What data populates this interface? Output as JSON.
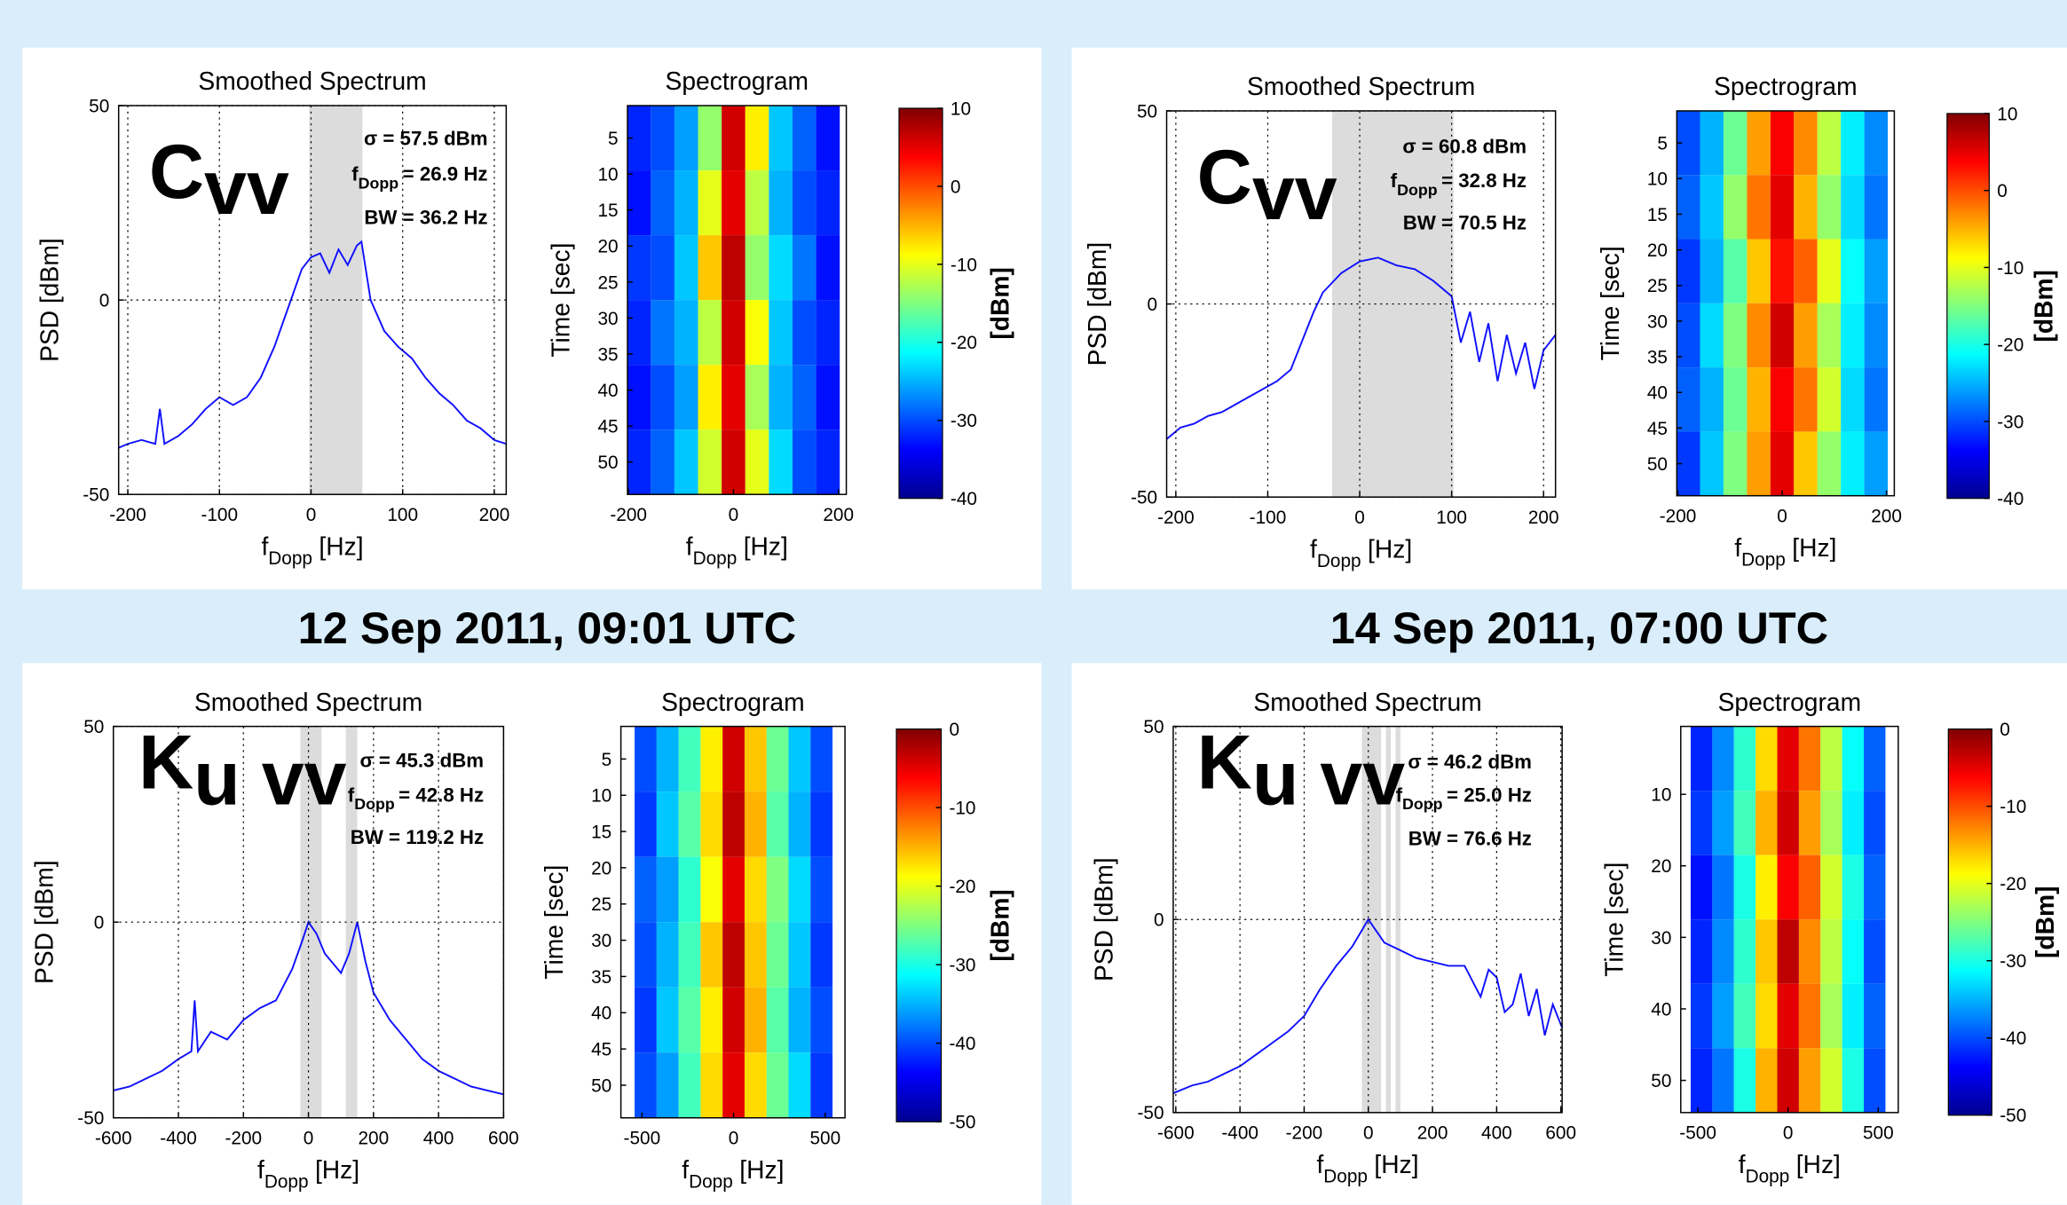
{
  "captions": [
    "12 Sep 2011, 09:01 UTC",
    "14 Sep 2011, 07:00 UTC"
  ],
  "chart_data": [
    {
      "type": "line",
      "title": "Smoothed Spectrum",
      "band": {
        "main": "C",
        "sub": "vv"
      },
      "annotations": [
        {
          "text": "σ = 57.5 dBm"
        },
        {
          "main": "f",
          "sub": "Dopp",
          "text": "= 26.9 Hz"
        },
        {
          "text": "BW = 36.2 Hz"
        }
      ],
      "x": [
        -210,
        -200,
        -185,
        -170,
        -165,
        -160,
        -145,
        -130,
        -115,
        -100,
        -85,
        -70,
        -55,
        -40,
        -25,
        -10,
        0,
        10,
        20,
        30,
        40,
        50,
        55,
        65,
        80,
        95,
        110,
        125,
        140,
        155,
        170,
        185,
        200,
        213
      ],
      "values": [
        -38,
        -37,
        -36,
        -37,
        -28,
        -37,
        -35,
        -32,
        -28,
        -25,
        -27,
        -25,
        -20,
        -12,
        -2,
        8,
        11,
        12,
        7,
        13,
        9,
        14,
        15,
        0,
        -8,
        -12,
        -15,
        -20,
        -24,
        -27,
        -31,
        -33,
        -36,
        -37
      ],
      "color": "#1010ff",
      "shaded": [
        [
          -2,
          56
        ]
      ],
      "xlim": [
        -210,
        213
      ],
      "ylim": [
        -50,
        50
      ],
      "xticks": [
        -200,
        -100,
        0,
        100,
        200
      ],
      "yticks": [
        -50,
        0,
        50
      ],
      "grid": true,
      "xlabel": {
        "main": "f",
        "sub": "Dopp",
        "unit": "[Hz]"
      },
      "ylabel": "PSD [dBm]"
    },
    {
      "type": "heatmap",
      "title": "Spectrogram",
      "yreverse": true,
      "x": [
        -180,
        -135,
        -90,
        -45,
        0,
        45,
        90,
        135,
        180
      ],
      "y": [
        5,
        14,
        23,
        32,
        41,
        50
      ],
      "z": [
        [
          -32,
          -30,
          -26,
          -14,
          6,
          -8,
          -24,
          -29,
          -33
        ],
        [
          -33,
          -29,
          -25,
          -10,
          5,
          -12,
          -25,
          -30,
          -32
        ],
        [
          -31,
          -30,
          -24,
          -6,
          7,
          -14,
          -23,
          -28,
          -33
        ],
        [
          -32,
          -28,
          -25,
          -12,
          6,
          -9,
          -24,
          -30,
          -32
        ],
        [
          -33,
          -30,
          -26,
          -8,
          5,
          -13,
          -25,
          -29,
          -33
        ],
        [
          -32,
          -29,
          -24,
          -11,
          6,
          -10,
          -23,
          -30,
          -32
        ]
      ],
      "xlim": [
        -202,
        215
      ],
      "ylim": [
        0.5,
        54.5
      ],
      "xticks": [
        -200,
        0,
        200
      ],
      "yticks": [
        5,
        10,
        15,
        20,
        25,
        30,
        35,
        40,
        45,
        50
      ],
      "xlabel": {
        "main": "f",
        "sub": "Dopp",
        "unit": "[Hz]"
      },
      "ylabel": "Time [sec]",
      "colorbar": {
        "label": "[dBm]",
        "lim": [
          -40,
          10
        ],
        "ticks": [
          10,
          0,
          -10,
          -20,
          -30,
          -40
        ]
      }
    },
    {
      "type": "line",
      "title": "Smoothed Spectrum",
      "band": {
        "main": "C",
        "sub": "vv"
      },
      "annotations": [
        {
          "text": "σ = 60.8 dBm"
        },
        {
          "main": "f",
          "sub": "Dopp",
          "text": "= 32.8 Hz"
        },
        {
          "text": "BW = 70.5 Hz"
        }
      ],
      "x": [
        -210,
        -195,
        -180,
        -165,
        -150,
        -135,
        -120,
        -105,
        -90,
        -75,
        -60,
        -50,
        -40,
        -20,
        0,
        20,
        40,
        60,
        80,
        100,
        110,
        120,
        130,
        140,
        150,
        160,
        170,
        180,
        190,
        200,
        213
      ],
      "values": [
        -35,
        -32,
        -31,
        -29,
        -28,
        -26,
        -24,
        -22,
        -20,
        -17,
        -8,
        -2,
        3,
        8,
        11,
        12,
        10,
        9,
        6,
        2,
        -10,
        -2,
        -15,
        -5,
        -20,
        -8,
        -18,
        -10,
        -22,
        -12,
        -8
      ],
      "color": "#1010ff",
      "shaded": [
        [
          -30,
          102
        ]
      ],
      "xlim": [
        -210,
        213
      ],
      "ylim": [
        -50,
        50
      ],
      "xticks": [
        -200,
        -100,
        0,
        100,
        200
      ],
      "yticks": [
        -50,
        0,
        50
      ],
      "grid": true,
      "xlabel": {
        "main": "f",
        "sub": "Dopp",
        "unit": "[Hz]"
      },
      "ylabel": "PSD [dBm]"
    },
    {
      "type": "heatmap",
      "title": "Spectrogram",
      "yreverse": true,
      "x": [
        -180,
        -135,
        -90,
        -45,
        0,
        45,
        90,
        135,
        180
      ],
      "y": [
        5,
        14,
        23,
        32,
        41,
        50
      ],
      "z": [
        [
          -30,
          -25,
          -16,
          -4,
          4,
          -3,
          -12,
          -22,
          -27
        ],
        [
          -29,
          -24,
          -14,
          -2,
          5,
          -5,
          -14,
          -23,
          -28
        ],
        [
          -31,
          -25,
          -17,
          -6,
          3,
          -1,
          -10,
          -21,
          -26
        ],
        [
          -30,
          -23,
          -15,
          -3,
          6,
          -4,
          -13,
          -22,
          -27
        ],
        [
          -29,
          -25,
          -16,
          -5,
          4,
          -2,
          -11,
          -23,
          -28
        ],
        [
          -31,
          -24,
          -15,
          -4,
          5,
          -6,
          -14,
          -22,
          -26
        ]
      ],
      "xlim": [
        -202,
        215
      ],
      "ylim": [
        0.5,
        54.5
      ],
      "xticks": [
        -200,
        0,
        200
      ],
      "yticks": [
        5,
        10,
        15,
        20,
        25,
        30,
        35,
        40,
        45,
        50
      ],
      "xlabel": {
        "main": "f",
        "sub": "Dopp",
        "unit": "[Hz]"
      },
      "ylabel": "Time [sec]",
      "colorbar": {
        "label": "[dBm]",
        "lim": [
          -40,
          10
        ],
        "ticks": [
          10,
          0,
          -10,
          -20,
          -30,
          -40
        ]
      }
    },
    {
      "type": "line",
      "title": "Smoothed Spectrum",
      "band": {
        "main": "K",
        "sub": "u vv"
      },
      "annotations": [
        {
          "text": "σ = 45.3 dBm"
        },
        {
          "main": "f",
          "sub": "Dopp",
          "text": "= 42.8 Hz"
        },
        {
          "text": "BW = 119.2 Hz"
        }
      ],
      "x": [
        -600,
        -550,
        -500,
        -450,
        -400,
        -360,
        -350,
        -340,
        -300,
        -250,
        -200,
        -150,
        -100,
        -50,
        -20,
        0,
        25,
        50,
        100,
        125,
        150,
        175,
        200,
        250,
        300,
        350,
        400,
        450,
        500,
        550,
        600
      ],
      "values": [
        -43,
        -42,
        -40,
        -38,
        -35,
        -33,
        -20,
        -33,
        -28,
        -30,
        -25,
        -22,
        -20,
        -12,
        -5,
        0,
        -3,
        -8,
        -13,
        -8,
        0,
        -10,
        -18,
        -25,
        -30,
        -35,
        -38,
        -40,
        -42,
        -43,
        -44
      ],
      "color": "#1010ff",
      "shaded": [
        [
          -25,
          40
        ],
        [
          115,
          150
        ]
      ],
      "xlim": [
        -600,
        600
      ],
      "ylim": [
        -50,
        50
      ],
      "xticks": [
        -600,
        -400,
        -200,
        0,
        200,
        400,
        600
      ],
      "yticks": [
        -50,
        0,
        50
      ],
      "grid": true,
      "xlabel": {
        "main": "f",
        "sub": "Dopp",
        "unit": "[Hz]"
      },
      "ylabel": "PSD [dBm]"
    },
    {
      "type": "heatmap",
      "title": "Spectrogram",
      "yreverse": true,
      "x": [
        -480,
        -360,
        -240,
        -120,
        0,
        120,
        240,
        360,
        480
      ],
      "y": [
        5,
        14,
        23,
        32,
        41,
        50
      ],
      "z": [
        [
          -40,
          -35,
          -28,
          -18,
          -4,
          -16,
          -26,
          -34,
          -40
        ],
        [
          -41,
          -34,
          -27,
          -17,
          -3,
          -15,
          -27,
          -35,
          -41
        ],
        [
          -39,
          -36,
          -29,
          -19,
          -5,
          -17,
          -25,
          -33,
          -40
        ],
        [
          -40,
          -35,
          -28,
          -16,
          -3,
          -16,
          -26,
          -34,
          -41
        ],
        [
          -41,
          -34,
          -27,
          -18,
          -4,
          -15,
          -27,
          -35,
          -40
        ],
        [
          -40,
          -36,
          -28,
          -17,
          -5,
          -17,
          -26,
          -33,
          -41
        ]
      ],
      "xlim": [
        -615,
        608
      ],
      "ylim": [
        0.5,
        54.5
      ],
      "xticks": [
        -500,
        0,
        500
      ],
      "yticks": [
        5,
        10,
        15,
        20,
        25,
        30,
        35,
        40,
        45,
        50
      ],
      "xlabel": {
        "main": "f",
        "sub": "Dopp",
        "unit": "[Hz]"
      },
      "ylabel": "Time [sec]",
      "colorbar": {
        "label": "[dBm]",
        "lim": [
          -50,
          0
        ],
        "ticks": [
          0,
          -10,
          -20,
          -30,
          -40,
          -50
        ]
      }
    },
    {
      "type": "line",
      "title": "Smoothed Spectrum",
      "band": {
        "main": "K",
        "sub": "u vv"
      },
      "annotations": [
        {
          "text": "σ = 46.2 dBm"
        },
        {
          "main": "f",
          "sub": "Dopp",
          "text": "= 25.0 Hz"
        },
        {
          "text": "BW = 76.6 Hz"
        }
      ],
      "x": [
        -608,
        -550,
        -500,
        -450,
        -400,
        -350,
        -300,
        -250,
        -200,
        -150,
        -100,
        -50,
        0,
        50,
        100,
        150,
        200,
        250,
        300,
        350,
        375,
        400,
        425,
        450,
        475,
        500,
        525,
        550,
        575,
        604
      ],
      "values": [
        -45,
        -43,
        -42,
        -40,
        -38,
        -35,
        -32,
        -29,
        -25,
        -18,
        -12,
        -7,
        0,
        -6,
        -8,
        -10,
        -11,
        -12,
        -12,
        -20,
        -13,
        -15,
        -24,
        -22,
        -14,
        -25,
        -18,
        -30,
        -22,
        -28
      ],
      "color": "#1010ff",
      "shaded": [
        [
          -20,
          40
        ],
        [
          55,
          70
        ],
        [
          85,
          100
        ]
      ],
      "xlim": [
        -608,
        604
      ],
      "ylim": [
        -50,
        50
      ],
      "xticks": [
        -600,
        -400,
        -200,
        0,
        200,
        400,
        600
      ],
      "yticks": [
        -50,
        0,
        50
      ],
      "grid": true,
      "xlabel": {
        "main": "f",
        "sub": "Dopp",
        "unit": "[Hz]"
      },
      "ylabel": "PSD [dBm]"
    },
    {
      "type": "heatmap",
      "title": "Spectrogram",
      "yreverse": true,
      "x": [
        -480,
        -360,
        -240,
        -120,
        0,
        120,
        240,
        360,
        480
      ],
      "y": [
        5,
        14,
        23,
        32,
        41,
        50
      ],
      "z": [
        [
          -42,
          -37,
          -29,
          -17,
          -5,
          -12,
          -22,
          -31,
          -39
        ],
        [
          -41,
          -36,
          -28,
          -15,
          -4,
          -14,
          -23,
          -32,
          -40
        ],
        [
          -43,
          -38,
          -30,
          -18,
          -6,
          -11,
          -21,
          -30,
          -39
        ],
        [
          -42,
          -37,
          -29,
          -16,
          -3,
          -13,
          -22,
          -31,
          -40
        ],
        [
          -41,
          -36,
          -28,
          -17,
          -5,
          -12,
          -23,
          -32,
          -39
        ],
        [
          -42,
          -38,
          -30,
          -15,
          -4,
          -14,
          -21,
          -30,
          -40
        ]
      ],
      "xlim": [
        -595,
        611
      ],
      "ylim": [
        0.5,
        54.5
      ],
      "xticks": [
        -500,
        0,
        500
      ],
      "yticks": [
        10,
        20,
        30,
        40,
        50
      ],
      "xlabel": {
        "main": "f",
        "sub": "Dopp",
        "unit": "[Hz]"
      },
      "ylabel": "Time [sec]",
      "colorbar": {
        "label": "[dBm]",
        "lim": [
          -50,
          0
        ],
        "ticks": [
          0,
          -10,
          -20,
          -30,
          -40,
          -50
        ]
      }
    }
  ]
}
